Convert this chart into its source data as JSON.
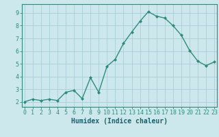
{
  "x": [
    0,
    1,
    2,
    3,
    4,
    5,
    6,
    7,
    8,
    9,
    10,
    11,
    12,
    13,
    14,
    15,
    16,
    17,
    18,
    19,
    20,
    21,
    22,
    23
  ],
  "y": [
    2.0,
    2.2,
    2.1,
    2.2,
    2.1,
    2.75,
    2.9,
    2.25,
    3.9,
    2.75,
    4.8,
    5.35,
    6.6,
    7.5,
    8.35,
    9.1,
    8.75,
    8.6,
    8.0,
    7.25,
    6.05,
    5.2,
    4.85,
    5.15
  ],
  "line_color": "#2e8b7a",
  "marker": "D",
  "marker_size": 2,
  "bg_color": "#cce8ec",
  "grid_color": "#aacdd4",
  "xlabel": "Humidex (Indice chaleur)",
  "xlabel_fontsize": 7,
  "tick_fontsize": 6,
  "xticks": [
    0,
    1,
    2,
    3,
    4,
    5,
    6,
    7,
    8,
    9,
    10,
    11,
    12,
    13,
    14,
    15,
    16,
    17,
    18,
    19,
    20,
    21,
    22,
    23
  ],
  "yticks": [
    2,
    3,
    4,
    5,
    6,
    7,
    8,
    9
  ],
  "ylim": [
    1.6,
    9.7
  ],
  "xlim": [
    -0.3,
    23.3
  ],
  "line_width": 1.0,
  "axis_color": "#2e8b7a",
  "tick_color": "#2e8b7a",
  "xlabel_color": "#1a5f6a",
  "xlabel_bold": true
}
